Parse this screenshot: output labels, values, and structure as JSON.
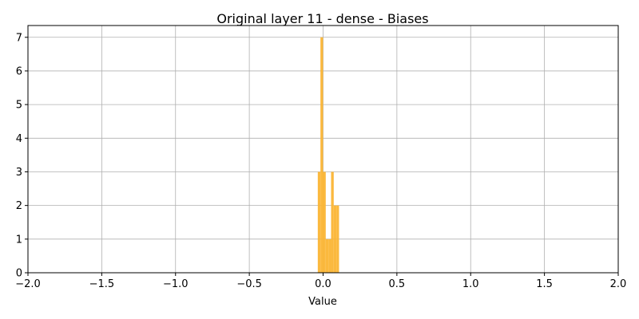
{
  "chart_data": {
    "type": "bar",
    "title": "Original layer 11 - dense - Biases",
    "xlabel": "Value",
    "ylabel": "",
    "xlim": [
      -2.0,
      2.0
    ],
    "ylim": [
      0,
      7.35
    ],
    "grid": true,
    "bar_color": "#FBB534",
    "x_ticks": [
      -2.0,
      -1.5,
      -1.0,
      -0.5,
      0.0,
      0.5,
      1.0,
      1.5,
      2.0
    ],
    "x_tick_labels": [
      "−2.0",
      "−1.5",
      "−1.0",
      "−0.5",
      "0.0",
      "0.5",
      "1.0",
      "1.5",
      "2.0"
    ],
    "y_ticks": [
      0,
      1,
      2,
      3,
      4,
      5,
      6,
      7
    ],
    "y_tick_labels": [
      "0",
      "1",
      "2",
      "3",
      "4",
      "5",
      "6",
      "7"
    ],
    "bins": [
      {
        "x0": -0.036,
        "x1": -0.018,
        "count": 3
      },
      {
        "x0": -0.018,
        "x1": 0.0,
        "count": 7
      },
      {
        "x0": 0.0,
        "x1": 0.018,
        "count": 3
      },
      {
        "x0": 0.018,
        "x1": 0.036,
        "count": 1
      },
      {
        "x0": 0.036,
        "x1": 0.054,
        "count": 1
      },
      {
        "x0": 0.054,
        "x1": 0.072,
        "count": 3
      },
      {
        "x0": 0.072,
        "x1": 0.09,
        "count": 2
      },
      {
        "x0": 0.09,
        "x1": 0.108,
        "count": 2
      }
    ]
  }
}
